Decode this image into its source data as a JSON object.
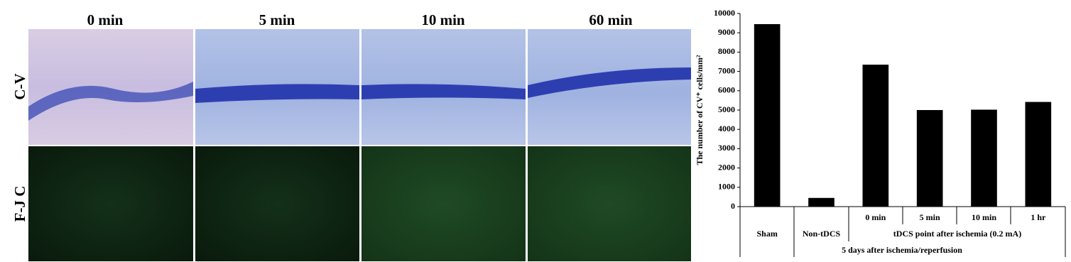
{
  "panels": {
    "columns": [
      "0 min",
      "5 min",
      "10 min",
      "60 min"
    ],
    "rows": [
      "C-V",
      "F-J C"
    ]
  },
  "chart_data": {
    "type": "bar",
    "y_label": "The number of CV⁺ cells/mm²",
    "categories": [
      "Sham",
      "Non-tDCS",
      "0 min",
      "5 min",
      "10 min",
      "1 hr"
    ],
    "values": [
      9450,
      450,
      7350,
      5000,
      5020,
      5420
    ],
    "color": "#000000",
    "ylim": [
      0,
      10000
    ],
    "yticks": [
      0,
      1000,
      2000,
      3000,
      4000,
      5000,
      6000,
      7000,
      8000,
      9000,
      10000
    ],
    "group_label": "tDCS point after ischemia (0.2 mA)",
    "outer_label": "5 days after ischemia/reperfusion"
  }
}
